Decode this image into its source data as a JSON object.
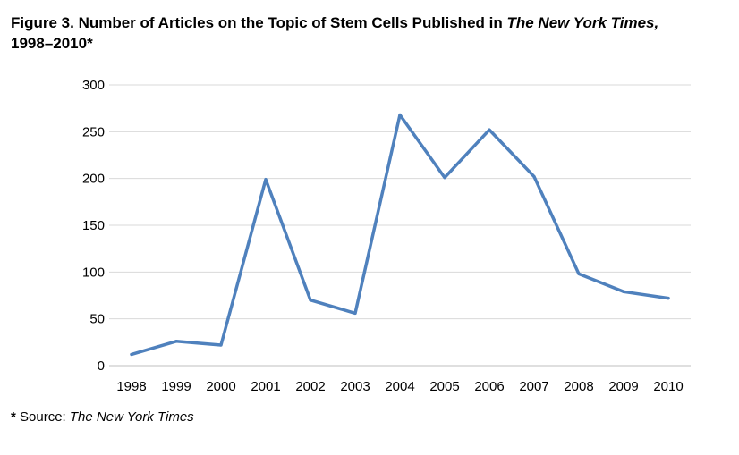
{
  "figure": {
    "title_prefix": "Figure 3.  Number of Articles on the Topic of Stem Cells Published in ",
    "title_italic": "The New York Times,",
    "title_suffix": "1998–2010*"
  },
  "footnote": {
    "marker": "*",
    "label": " Source: ",
    "source_italic": "The New York Times"
  },
  "colors": {
    "line": "#4f81bd",
    "grid": "#d9d9d9",
    "axis": "#bfbfbf"
  },
  "chart_data": {
    "type": "line",
    "categories": [
      "1998",
      "1999",
      "2000",
      "2001",
      "2002",
      "2003",
      "2004",
      "2005",
      "2006",
      "2007",
      "2008",
      "2009",
      "2010"
    ],
    "series": [
      {
        "values": [
          12,
          26,
          22,
          199,
          70,
          56,
          268,
          201,
          252,
          202,
          98,
          79,
          72
        ]
      }
    ],
    "yticks": [
      "0",
      "50",
      "100",
      "150",
      "200",
      "250",
      "300"
    ],
    "ylim": [
      0,
      300
    ],
    "grid": true,
    "legend": "none"
  }
}
